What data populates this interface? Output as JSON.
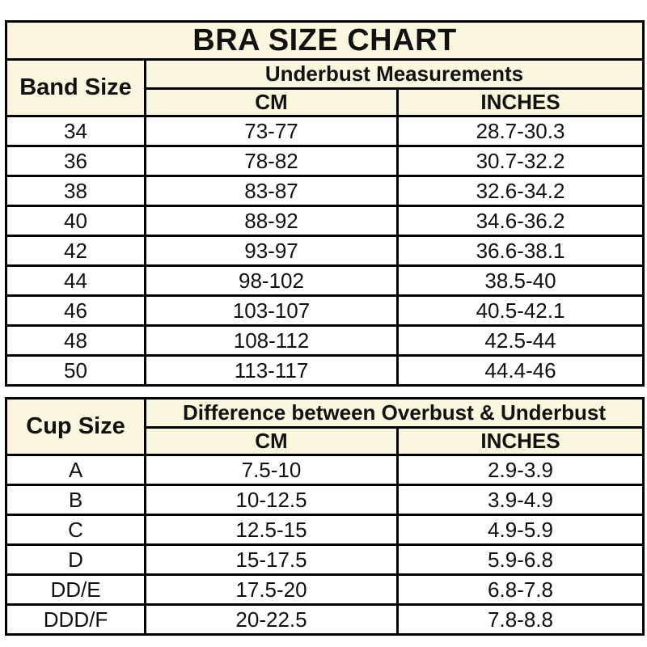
{
  "title": "BRA SIZE CHART",
  "band_table": {
    "corner_header": "Band Size",
    "group_header": "Underbust Measurements",
    "col_headers": [
      "CM",
      "INCHES"
    ],
    "rows": [
      [
        "34",
        "73-77",
        "28.7-30.3"
      ],
      [
        "36",
        "78-82",
        "30.7-32.2"
      ],
      [
        "38",
        "83-87",
        "32.6-34.2"
      ],
      [
        "40",
        "88-92",
        "34.6-36.2"
      ],
      [
        "42",
        "93-97",
        "36.6-38.1"
      ],
      [
        "44",
        "98-102",
        "38.5-40"
      ],
      [
        "46",
        "103-107",
        "40.5-42.1"
      ],
      [
        "48",
        "108-112",
        "42.5-44"
      ],
      [
        "50",
        "113-117",
        "44.4-46"
      ]
    ]
  },
  "cup_table": {
    "corner_header": "Cup Size",
    "group_header": "Difference between Overbust & Underbust",
    "col_headers": [
      "CM",
      "INCHES"
    ],
    "rows": [
      [
        "A",
        "7.5-10",
        "2.9-3.9"
      ],
      [
        "B",
        "10-12.5",
        "3.9-4.9"
      ],
      [
        "C",
        "12.5-15",
        "4.9-5.9"
      ],
      [
        "D",
        "15-17.5",
        "5.9-6.8"
      ],
      [
        "DD/E",
        "17.5-20",
        "6.8-7.8"
      ],
      [
        "DDD/F",
        "20-22.5",
        "7.8-8.8"
      ]
    ]
  },
  "colors": {
    "header_bg": "#FBF7DE",
    "row_bg": "#FFFFFF",
    "border": "#000000",
    "text": "#111111"
  },
  "chart_data": [
    {
      "type": "table",
      "title": "BRA SIZE CHART",
      "columns": [
        "Band Size",
        "Underbust Measurements CM",
        "Underbust Measurements INCHES"
      ],
      "rows": [
        [
          "34",
          "73-77",
          "28.7-30.3"
        ],
        [
          "36",
          "78-82",
          "30.7-32.2"
        ],
        [
          "38",
          "83-87",
          "32.6-34.2"
        ],
        [
          "40",
          "88-92",
          "34.6-36.2"
        ],
        [
          "42",
          "93-97",
          "36.6-38.1"
        ],
        [
          "44",
          "98-102",
          "38.5-40"
        ],
        [
          "46",
          "103-107",
          "40.5-42.1"
        ],
        [
          "48",
          "108-112",
          "42.5-44"
        ],
        [
          "50",
          "113-117",
          "44.4-46"
        ]
      ]
    },
    {
      "type": "table",
      "title": "",
      "columns": [
        "Cup Size",
        "Difference between Overbust & Underbust CM",
        "Difference between Overbust & Underbust INCHES"
      ],
      "rows": [
        [
          "A",
          "7.5-10",
          "2.9-3.9"
        ],
        [
          "B",
          "10-12.5",
          "3.9-4.9"
        ],
        [
          "C",
          "12.5-15",
          "4.9-5.9"
        ],
        [
          "D",
          "15-17.5",
          "5.9-6.8"
        ],
        [
          "DD/E",
          "17.5-20",
          "6.8-7.8"
        ],
        [
          "DDD/F",
          "20-22.5",
          "7.8-8.8"
        ]
      ]
    }
  ]
}
